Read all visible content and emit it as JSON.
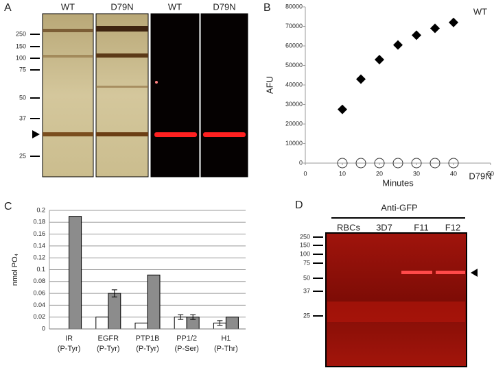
{
  "panels": {
    "a": "A",
    "b": "B",
    "c": "C",
    "d": "D"
  },
  "gel_a": {
    "lanes": [
      "WT",
      "D79N",
      "WT",
      "D79N"
    ],
    "markers": [
      250,
      150,
      100,
      75,
      50,
      37,
      25
    ]
  },
  "gel_d": {
    "title": "Anti-GFP",
    "lanes": [
      "RBCs",
      "3D7",
      "F11",
      "F12"
    ],
    "markers": [
      250,
      150,
      100,
      75,
      50,
      37,
      25
    ]
  },
  "chart_data": [
    {
      "type": "scatter",
      "xlabel": "Minutes",
      "ylabel": "AFU",
      "x": [
        10,
        15,
        20,
        25,
        30,
        35,
        40
      ],
      "series": [
        {
          "name": "WT",
          "color": "#000000",
          "marker": "diamond",
          "values": [
            27500,
            43000,
            53000,
            60500,
            65500,
            69000,
            72000
          ]
        },
        {
          "name": "D79N",
          "color": "#333333",
          "marker": "open-circle",
          "values": [
            0,
            0,
            0,
            0,
            0,
            0,
            0
          ]
        }
      ],
      "xlim": [
        0,
        50
      ],
      "xticks": [
        0,
        10,
        20,
        30,
        40,
        50
      ],
      "ylim": [
        0,
        80000
      ],
      "yticks": [
        0,
        10000,
        20000,
        30000,
        40000,
        50000,
        60000,
        70000,
        80000
      ],
      "grid": false
    },
    {
      "type": "bar",
      "ylabel": "nmol PO₄",
      "categories": [
        "IR",
        "EGFR",
        "PTP1B",
        "PP1/2",
        "H1"
      ],
      "category_sublabels": [
        "(P-Tyr)",
        "(P-Tyr)",
        "(P-Tyr)",
        "(P-Ser)",
        "(P-Thr)"
      ],
      "series": [
        {
          "color": "#ffffff",
          "values": [
            0,
            0.02,
            0.01,
            0.02,
            0.01
          ],
          "errors": [
            null,
            null,
            null,
            0.004,
            0.004
          ]
        },
        {
          "color": "#8c8c8c",
          "values": [
            0.19,
            0.06,
            0.091,
            0.02,
            0.02
          ],
          "errors": [
            null,
            0.006,
            null,
            0.004,
            null
          ]
        }
      ],
      "ylim": [
        0,
        0.2
      ],
      "yticks": [
        0,
        0.02,
        0.04,
        0.06,
        0.08,
        0.1,
        0.12,
        0.14,
        0.16,
        0.18,
        0.2
      ],
      "grid": true
    }
  ]
}
